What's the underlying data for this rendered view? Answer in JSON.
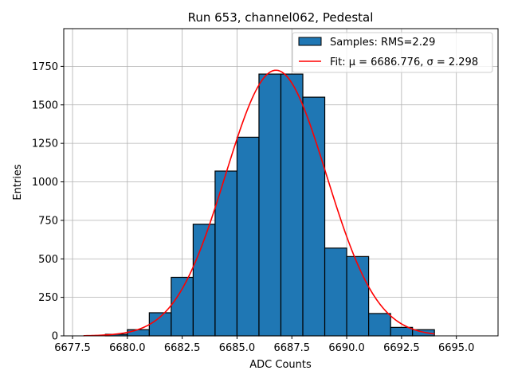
{
  "chart_data": {
    "type": "bar",
    "title": "Run 653, channel062, Pedestal",
    "xlabel": "ADC Counts",
    "ylabel": "Entries",
    "xlim": [
      6677.1,
      6696.9
    ],
    "ylim": [
      0,
      1995
    ],
    "xticks": [
      6677.5,
      6680.0,
      6682.5,
      6685.0,
      6687.5,
      6690.0,
      6692.5,
      6695.0
    ],
    "xtick_labels": [
      "6677.5",
      "6680.0",
      "6682.5",
      "6685.0",
      "6687.5",
      "6690.0",
      "6692.5",
      "6695.0"
    ],
    "yticks": [
      0,
      250,
      500,
      750,
      1000,
      1250,
      1500,
      1750
    ],
    "ytick_labels": [
      "0",
      "250",
      "500",
      "750",
      "1000",
      "1250",
      "1500",
      "1750"
    ],
    "grid": true,
    "legend_position": "top-right",
    "bar_color": "#1f77b4",
    "fit_color": "#ff0000",
    "bin_edges": [
      6678,
      6679,
      6680,
      6681,
      6682,
      6683,
      6684,
      6685,
      6686,
      6687,
      6688,
      6689,
      6690,
      6691,
      6692,
      6693,
      6694
    ],
    "values": [
      0,
      10,
      40,
      150,
      380,
      725,
      1070,
      1290,
      1700,
      1700,
      1550,
      570,
      515,
      145,
      55,
      40
    ],
    "series": [
      {
        "name": "Samples: RMS=2.29",
        "kind": "histogram"
      },
      {
        "name": "Fit: μ = 6686.776, σ = 2.298",
        "kind": "line",
        "mu": 6686.776,
        "sigma": 2.298,
        "peak": 1725,
        "range": [
          6678,
          6694
        ]
      }
    ]
  }
}
